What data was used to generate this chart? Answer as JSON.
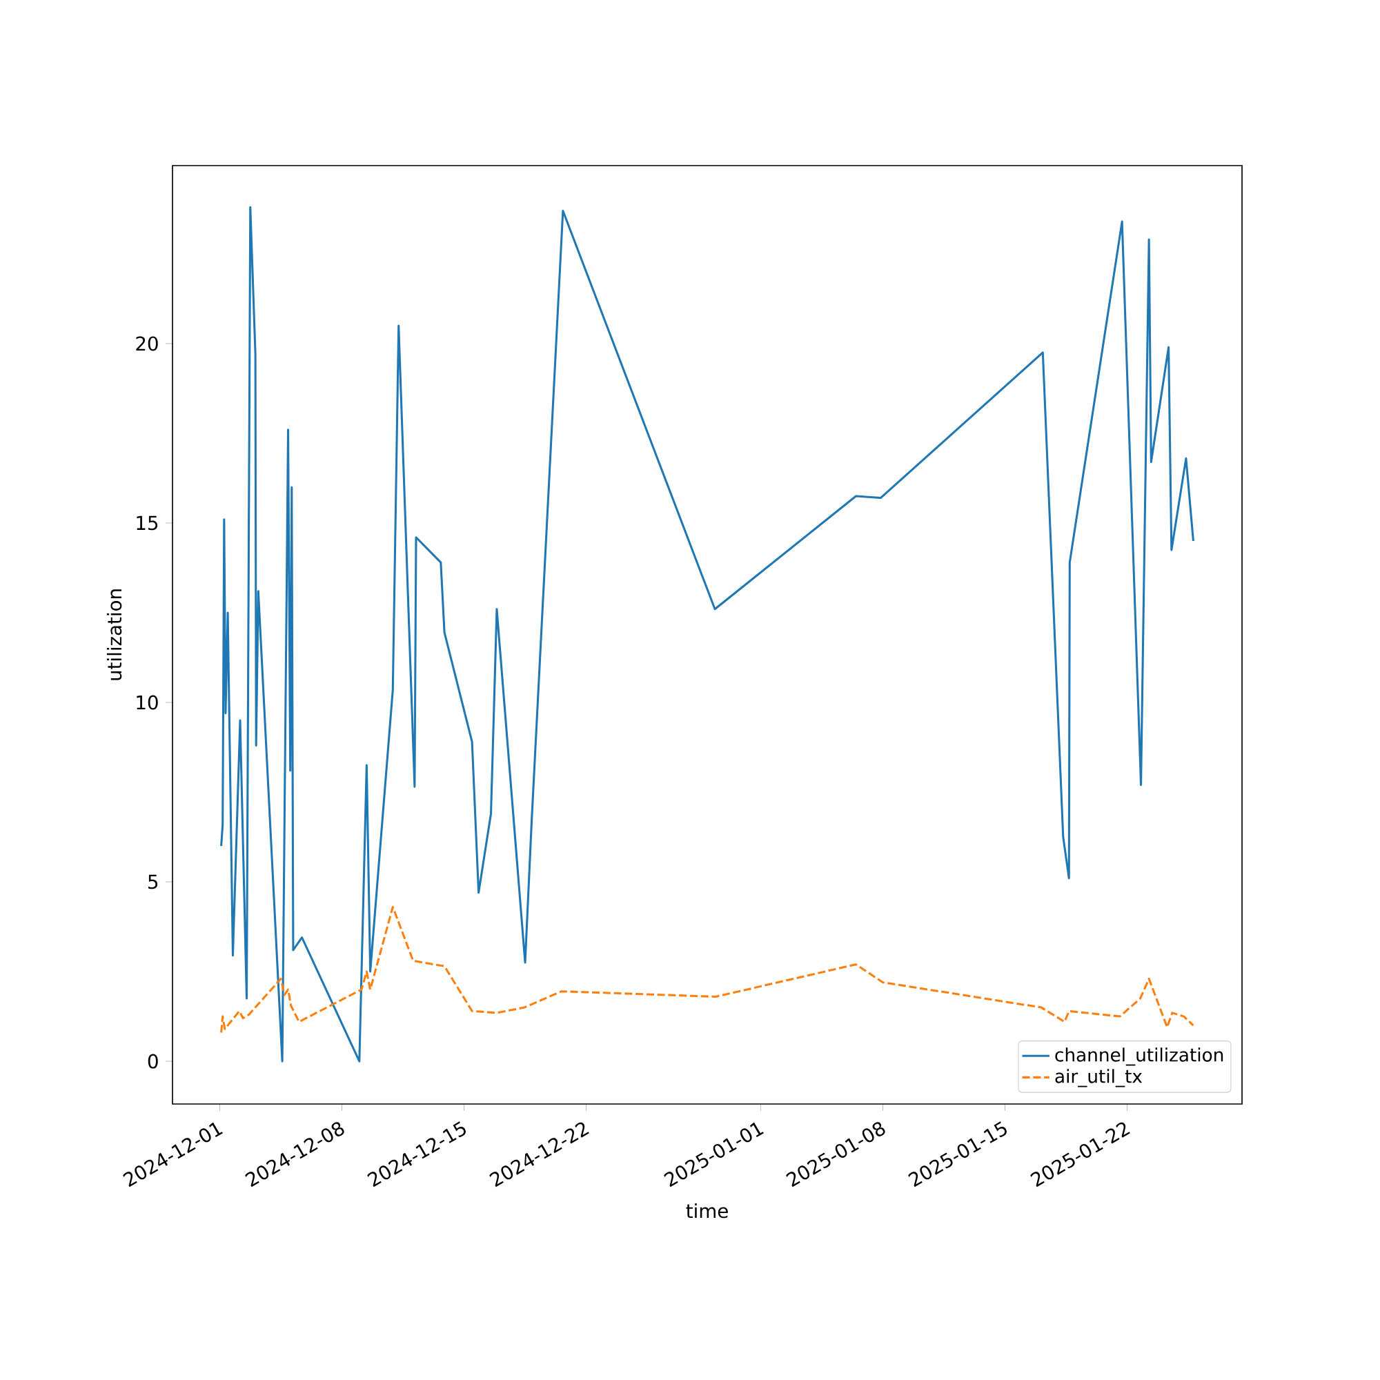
{
  "chart_data": {
    "type": "line",
    "xlabel": "time",
    "ylabel": "utilization",
    "xlim": [
      "2024-11-28T07:00",
      "2025-01-28T14:00"
    ],
    "ylim": [
      -1.19,
      24.96
    ],
    "xticks": [
      "2024-12-01",
      "2024-12-08",
      "2024-12-15",
      "2024-12-22",
      "2025-01-01",
      "2025-01-08",
      "2025-01-15",
      "2025-01-22"
    ],
    "yticks": [
      0,
      5,
      10,
      15,
      20
    ],
    "legend": "bottom right",
    "series": [
      {
        "name": "channel_utilization",
        "color": "#1f77b4",
        "line_style": "solid",
        "x": [
          "2024-12-01T02:00",
          "2024-12-01T04:00",
          "2024-12-01T06:00",
          "2024-12-01T08:00",
          "2024-12-01T11:00",
          "2024-12-01T18:00",
          "2024-12-02T04:00",
          "2024-12-02T13:00",
          "2024-12-02T18:00",
          "2024-12-03T01:00",
          "2024-12-03T02:00",
          "2024-12-03T05:00",
          "2024-12-04T14:00",
          "2024-12-04T22:00",
          "2024-12-05T01:00",
          "2024-12-05T03:00",
          "2024-12-05T05:00",
          "2024-12-05T17:00",
          "2024-12-09T00:00",
          "2024-12-09T10:00",
          "2024-12-09T15:00",
          "2024-12-10T22:00",
          "2024-12-11T06:00",
          "2024-12-12T04:00",
          "2024-12-12T06:00",
          "2024-12-13T16:00",
          "2024-12-13T21:00",
          "2024-12-15T11:00",
          "2024-12-15T20:00",
          "2024-12-16T13:00",
          "2024-12-16T21:00",
          "2024-12-18T12:00",
          "2024-12-18T21:00",
          "2024-12-20T16:00",
          "2024-12-29T09:00",
          "2025-01-06T11:00",
          "2025-01-07T21:00",
          "2025-01-17T04:00",
          "2025-01-18T08:00",
          "2025-01-18T16:00",
          "2025-01-18T17:00",
          "2025-01-21T17:00",
          "2025-01-22T19:00",
          "2025-01-23T06:00",
          "2025-01-23T09:00",
          "2025-01-24T09:00",
          "2025-01-24T13:00",
          "2025-01-25T09:00",
          "2025-01-25T19:00"
        ],
        "values": [
          6.0,
          6.6,
          15.1,
          9.7,
          12.5,
          2.95,
          9.5,
          1.75,
          23.8,
          19.7,
          8.8,
          13.1,
          0,
          17.6,
          8.1,
          16.0,
          3.1,
          3.45,
          0,
          8.25,
          2.5,
          10.35,
          20.5,
          7.65,
          14.6,
          13.9,
          11.95,
          8.9,
          4.7,
          6.9,
          12.6,
          2.75,
          6.7,
          23.7,
          12.6,
          15.75,
          15.7,
          19.75,
          6.25,
          5.1,
          13.9,
          23.4,
          7.7,
          22.9,
          16.7,
          19.9,
          14.25,
          16.8,
          14.5
        ]
      },
      {
        "name": "air_util_tx",
        "color": "#ff7f0e",
        "line_style": "dashed",
        "x": [
          "2024-12-01T02:00",
          "2024-12-01T04:00",
          "2024-12-01T07:00",
          "2024-12-02T03:00",
          "2024-12-02T08:00",
          "2024-12-02T16:00",
          "2024-12-04T12:00",
          "2024-12-04T17:00",
          "2024-12-04T22:00",
          "2024-12-05T02:00",
          "2024-12-05T13:00",
          "2024-12-09T03:00",
          "2024-12-09T10:00",
          "2024-12-09T15:00",
          "2024-12-10T22:00",
          "2024-12-12T02:00",
          "2024-12-13T21:00",
          "2024-12-15T11:00",
          "2024-12-16T21:00",
          "2024-12-18T11:00",
          "2024-12-20T14:00",
          "2024-12-29T10:00",
          "2025-01-06T11:00",
          "2025-01-08T00:00",
          "2025-01-17T02:00",
          "2025-01-18T10:00",
          "2025-01-18T16:00",
          "2025-01-21T14:00",
          "2025-01-22T18:00",
          "2025-01-23T06:00",
          "2025-01-24T07:00",
          "2025-01-24T14:00",
          "2025-01-25T06:00",
          "2025-01-25T19:00"
        ],
        "values": [
          0.8,
          1.25,
          0.9,
          1.4,
          1.2,
          1.3,
          2.3,
          1.85,
          2.0,
          1.55,
          1.1,
          2.0,
          2.5,
          2.0,
          4.3,
          2.8,
          2.65,
          1.4,
          1.35,
          1.5,
          1.95,
          1.8,
          2.7,
          2.2,
          1.5,
          1.1,
          1.4,
          1.25,
          1.75,
          2.3,
          0.95,
          1.35,
          1.25,
          1.0
        ]
      }
    ]
  }
}
